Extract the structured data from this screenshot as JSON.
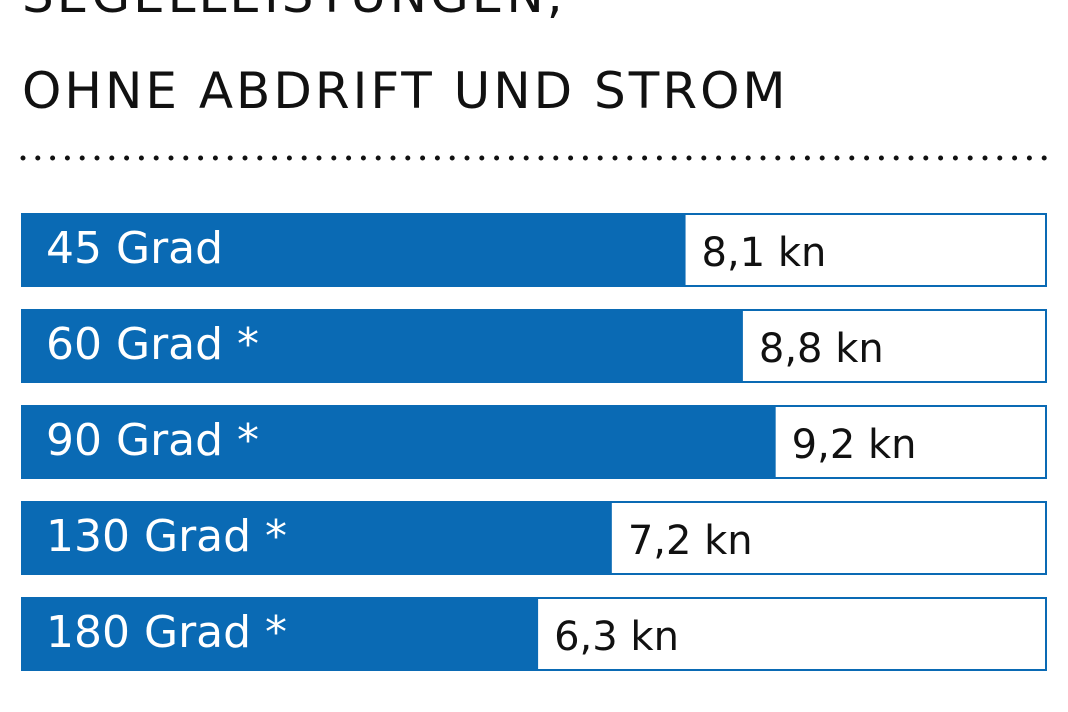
{
  "title_lines": [
    "SEGELLEISTUNGEN,",
    "OHNE ABDRIFT UND STROM"
  ],
  "colors": {
    "bar_fill": "#0a6ab4",
    "bar_border": "#0a6ab4",
    "label_on_bar": "#ffffff",
    "value_text": "#111111"
  },
  "chart_data": {
    "type": "bar",
    "orientation": "horizontal",
    "categories": [
      "45 Grad",
      "60 Grad *",
      "90 Grad *",
      "130 Grad *",
      "180 Grad *"
    ],
    "values": [
      8.1,
      8.8,
      9.2,
      7.2,
      6.3
    ],
    "value_labels": [
      "8,1 kn",
      "8,8 kn",
      "9,2 kn",
      "7,2 kn",
      "6,3 kn"
    ],
    "unit": "kn",
    "xlim": [
      0,
      12.5
    ],
    "grid": false,
    "legend": "none"
  }
}
